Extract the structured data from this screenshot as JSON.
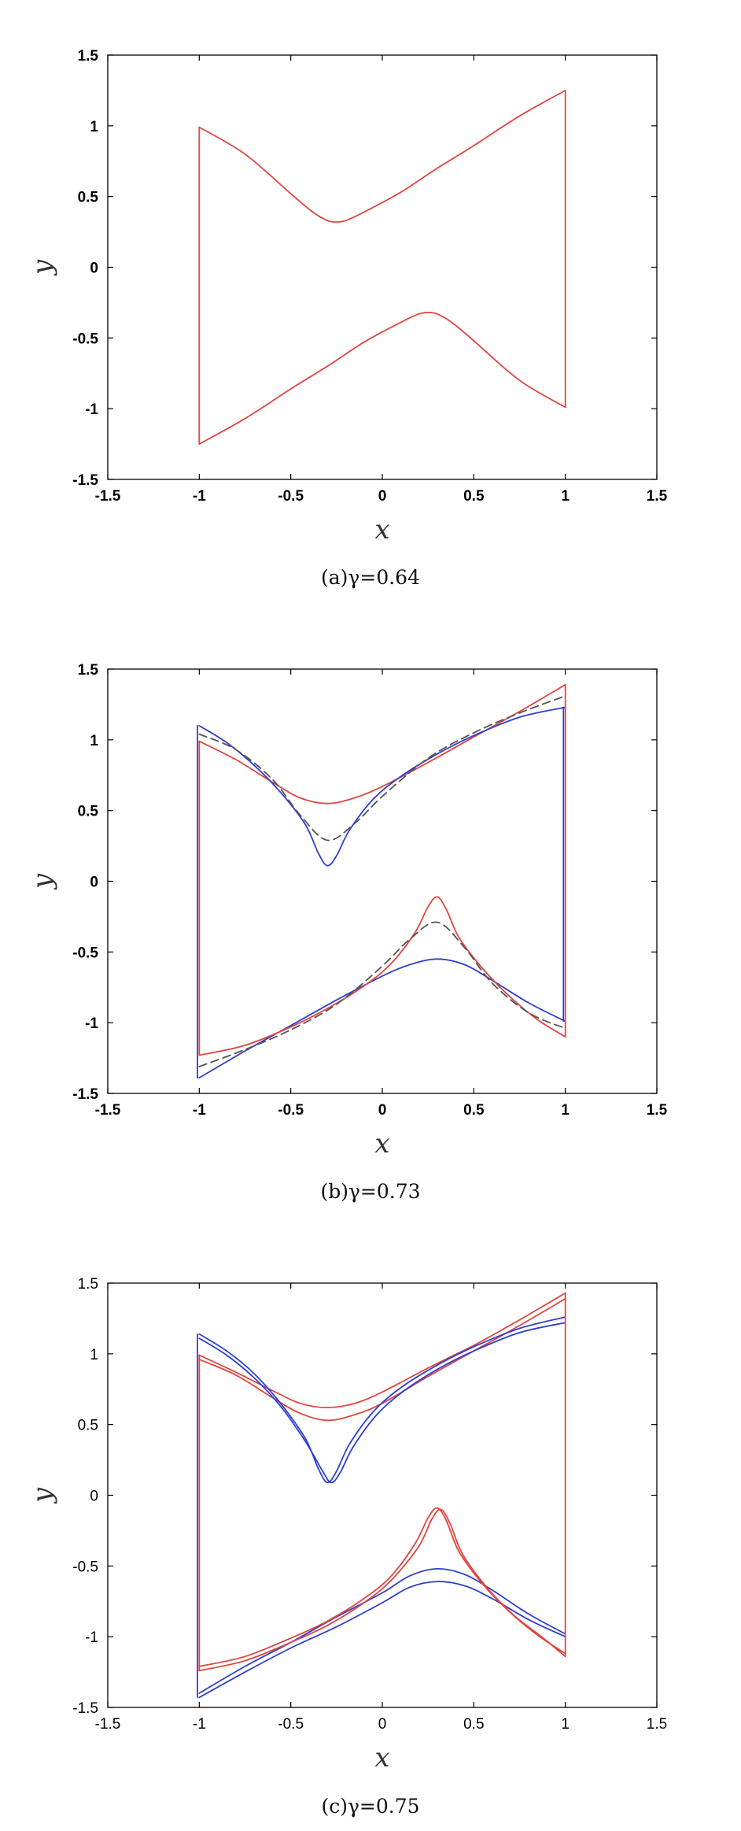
{
  "chart_data": [
    {
      "type": "line",
      "caption": "(a)γ=0.64",
      "xlabel": "x",
      "ylabel": "y",
      "xlim": [
        -1.5,
        1.5
      ],
      "ylim": [
        -1.5,
        1.5
      ],
      "xticks": [
        "-1.5",
        "-1",
        "-0.5",
        "0",
        "0.5",
        "1",
        "1.5"
      ],
      "yticks": [
        "-1.5",
        "-1",
        "-0.5",
        "0",
        "0.5",
        "1",
        "1.5"
      ],
      "grid": false,
      "series": [
        {
          "color": "#e0453f",
          "dashed": false,
          "x": [
            -1,
            -0.75,
            -0.5,
            -0.38,
            -0.3,
            -0.25,
            -0.2,
            -0.1,
            0.1,
            0.3,
            0.5,
            0.75,
            1
          ],
          "y": [
            0.99,
            0.8,
            0.52,
            0.39,
            0.33,
            0.32,
            0.33,
            0.39,
            0.53,
            0.7,
            0.86,
            1.07,
            1.25
          ]
        },
        {
          "color": "#e0453f",
          "dashed": false,
          "x": [
            -1,
            -0.75,
            -0.5,
            -0.3,
            -0.1,
            0.1,
            0.2,
            0.25,
            0.3,
            0.38,
            0.5,
            0.75,
            1
          ],
          "y": [
            -1.25,
            -1.07,
            -0.86,
            -0.7,
            -0.53,
            -0.39,
            -0.33,
            -0.32,
            -0.33,
            -0.39,
            -0.52,
            -0.8,
            -0.99
          ]
        },
        {
          "color": "#e0453f",
          "dashed": false,
          "x": [
            -1,
            -1
          ],
          "y": [
            0.99,
            -1.25
          ]
        },
        {
          "color": "#e0453f",
          "dashed": false,
          "x": [
            1,
            1
          ],
          "y": [
            1.25,
            -0.99
          ]
        }
      ]
    },
    {
      "type": "line",
      "caption": "(b)γ=0.73",
      "xlabel": "x",
      "ylabel": "y",
      "xlim": [
        -1.5,
        1.5
      ],
      "ylim": [
        -1.5,
        1.5
      ],
      "xticks": [
        "-1.5",
        "-1",
        "-0.5",
        "0",
        "0.5",
        "1",
        "1.5"
      ],
      "yticks": [
        "-1.5",
        "-1",
        "-0.5",
        "0",
        "0.5",
        "1",
        "1.5"
      ],
      "grid": false,
      "series": [
        {
          "color": "#e0453f",
          "dashed": false,
          "x": [
            -1,
            -0.8,
            -0.6,
            -0.45,
            -0.3,
            -0.15,
            0,
            0.25,
            0.5,
            0.75,
            1
          ],
          "y": [
            0.99,
            0.86,
            0.7,
            0.59,
            0.55,
            0.59,
            0.67,
            0.84,
            1.02,
            1.2,
            1.39
          ]
        },
        {
          "color": "#2f3fd0",
          "dashed": false,
          "x": [
            -1,
            -0.85,
            -0.7,
            -0.55,
            -0.42,
            -0.35,
            -0.3,
            -0.25,
            -0.18,
            -0.05,
            0.1,
            0.3,
            0.5,
            0.75,
            1
          ],
          "y": [
            1.1,
            0.98,
            0.82,
            0.62,
            0.4,
            0.2,
            0.11,
            0.18,
            0.36,
            0.58,
            0.74,
            0.9,
            1.03,
            1.16,
            1.23
          ]
        },
        {
          "color": "#555555",
          "dashed": true,
          "x": [
            -1,
            -0.8,
            -0.6,
            -0.45,
            -0.3,
            -0.15,
            0,
            0.25,
            0.5,
            0.75,
            1
          ],
          "y": [
            1.04,
            0.93,
            0.72,
            0.47,
            0.29,
            0.41,
            0.6,
            0.87,
            1.05,
            1.19,
            1.31
          ]
        },
        {
          "color": "#2f3fd0",
          "dashed": false,
          "x": [
            -1,
            -0.75,
            -0.5,
            -0.25,
            0,
            0.15,
            0.3,
            0.45,
            0.6,
            0.8,
            1
          ],
          "y": [
            -1.39,
            -1.2,
            -1.02,
            -0.84,
            -0.67,
            -0.59,
            -0.55,
            -0.59,
            -0.7,
            -0.86,
            -0.99
          ]
        },
        {
          "color": "#e0453f",
          "dashed": false,
          "x": [
            -1,
            -0.75,
            -0.5,
            -0.3,
            -0.1,
            0.05,
            0.18,
            0.25,
            0.3,
            0.35,
            0.42,
            0.55,
            0.7,
            0.85,
            1
          ],
          "y": [
            -1.23,
            -1.16,
            -1.03,
            -0.9,
            -0.74,
            -0.58,
            -0.36,
            -0.18,
            -0.11,
            -0.2,
            -0.4,
            -0.62,
            -0.82,
            -0.98,
            -1.1
          ]
        },
        {
          "color": "#555555",
          "dashed": true,
          "x": [
            -1,
            -0.75,
            -0.5,
            -0.25,
            0,
            0.15,
            0.3,
            0.45,
            0.6,
            0.8,
            1
          ],
          "y": [
            -1.31,
            -1.19,
            -1.05,
            -0.87,
            -0.6,
            -0.41,
            -0.29,
            -0.47,
            -0.72,
            -0.93,
            -1.04
          ]
        },
        {
          "color": "#e0453f",
          "dashed": false,
          "x": [
            -1,
            -1
          ],
          "y": [
            0.99,
            -1.23
          ]
        },
        {
          "color": "#2f3fd0",
          "dashed": false,
          "x": [
            -1.01,
            -1.01
          ],
          "y": [
            1.1,
            -1.39
          ]
        },
        {
          "color": "#e0453f",
          "dashed": false,
          "x": [
            1,
            1
          ],
          "y": [
            1.39,
            -1.1
          ]
        },
        {
          "color": "#2f3fd0",
          "dashed": false,
          "x": [
            0.99,
            0.99
          ],
          "y": [
            1.23,
            -0.99
          ]
        }
      ]
    },
    {
      "type": "line",
      "caption": "(c)γ=0.75",
      "xlabel": "x",
      "ylabel": "y",
      "xlim": [
        -1.5,
        1.5
      ],
      "ylim": [
        -1.5,
        1.5
      ],
      "xticks": [
        "-1.5",
        "-1",
        "-0.5",
        "0",
        "0.5",
        "1",
        "1.5"
      ],
      "yticks": [
        "-1.5",
        "-1",
        "-0.5",
        "0",
        "0.5",
        "1",
        "1.5"
      ],
      "grid": false,
      "series": [
        {
          "color": "#e0453f",
          "dashed": false,
          "x": [
            -1,
            -0.8,
            -0.6,
            -0.45,
            -0.3,
            -0.15,
            0,
            0.25,
            0.5,
            0.75,
            1
          ],
          "y": [
            0.99,
            0.87,
            0.74,
            0.65,
            0.62,
            0.65,
            0.73,
            0.9,
            1.06,
            1.24,
            1.43
          ]
        },
        {
          "color": "#e0453f",
          "dashed": false,
          "x": [
            -1,
            -0.8,
            -0.6,
            -0.45,
            -0.3,
            -0.15,
            0,
            0.25,
            0.5,
            0.75,
            1
          ],
          "y": [
            0.96,
            0.85,
            0.69,
            0.58,
            0.53,
            0.57,
            0.65,
            0.84,
            1.02,
            1.2,
            1.39
          ]
        },
        {
          "color": "#2f3fd0",
          "dashed": false,
          "x": [
            -1,
            -0.85,
            -0.7,
            -0.55,
            -0.42,
            -0.35,
            -0.3,
            -0.25,
            -0.18,
            -0.05,
            0.1,
            0.3,
            0.5,
            0.75,
            1
          ],
          "y": [
            1.14,
            1.02,
            0.86,
            0.64,
            0.4,
            0.19,
            0.09,
            0.17,
            0.36,
            0.59,
            0.76,
            0.92,
            1.05,
            1.18,
            1.26
          ]
        },
        {
          "color": "#2f3fd0",
          "dashed": false,
          "x": [
            -1,
            -0.85,
            -0.7,
            -0.55,
            -0.42,
            -0.33,
            -0.28,
            -0.23,
            -0.16,
            -0.03,
            0.12,
            0.3,
            0.5,
            0.75,
            1
          ],
          "y": [
            1.11,
            0.99,
            0.83,
            0.62,
            0.38,
            0.18,
            0.09,
            0.16,
            0.34,
            0.57,
            0.74,
            0.89,
            1.02,
            1.15,
            1.22
          ]
        },
        {
          "color": "#2f3fd0",
          "dashed": false,
          "x": [
            -1,
            -0.75,
            -0.5,
            -0.25,
            0,
            0.15,
            0.3,
            0.45,
            0.6,
            0.8,
            1
          ],
          "y": [
            -1.4,
            -1.21,
            -1.04,
            -0.86,
            -0.69,
            -0.57,
            -0.52,
            -0.56,
            -0.67,
            -0.84,
            -0.98
          ]
        },
        {
          "color": "#2f3fd0",
          "dashed": false,
          "x": [
            -1,
            -0.75,
            -0.5,
            -0.25,
            0,
            0.15,
            0.3,
            0.45,
            0.6,
            0.8,
            1
          ],
          "y": [
            -1.43,
            -1.25,
            -1.08,
            -0.93,
            -0.76,
            -0.65,
            -0.61,
            -0.64,
            -0.73,
            -0.88,
            -1.0
          ]
        },
        {
          "color": "#e0453f",
          "dashed": false,
          "x": [
            -1,
            -0.75,
            -0.5,
            -0.3,
            -0.1,
            0.05,
            0.18,
            0.25,
            0.3,
            0.35,
            0.42,
            0.55,
            0.7,
            0.85,
            1
          ],
          "y": [
            -1.21,
            -1.14,
            -1.01,
            -0.89,
            -0.73,
            -0.57,
            -0.34,
            -0.16,
            -0.09,
            -0.18,
            -0.4,
            -0.63,
            -0.83,
            -0.99,
            -1.12
          ]
        },
        {
          "color": "#e0453f",
          "dashed": false,
          "x": [
            -1,
            -0.75,
            -0.5,
            -0.3,
            -0.1,
            0.05,
            0.2,
            0.27,
            0.32,
            0.37,
            0.44,
            0.57,
            0.72,
            0.87,
            1
          ],
          "y": [
            -1.24,
            -1.17,
            -1.04,
            -0.92,
            -0.76,
            -0.6,
            -0.36,
            -0.17,
            -0.1,
            -0.2,
            -0.42,
            -0.65,
            -0.85,
            -1.0,
            -1.14
          ]
        },
        {
          "color": "#e0453f",
          "dashed": false,
          "x": [
            -1,
            -1
          ],
          "y": [
            0.99,
            -1.24
          ]
        },
        {
          "color": "#2f3fd0",
          "dashed": false,
          "x": [
            -1.01,
            -1.01
          ],
          "y": [
            1.14,
            -1.43
          ]
        },
        {
          "color": "#e0453f",
          "dashed": false,
          "x": [
            1,
            1
          ],
          "y": [
            1.43,
            -1.14
          ]
        }
      ]
    }
  ]
}
